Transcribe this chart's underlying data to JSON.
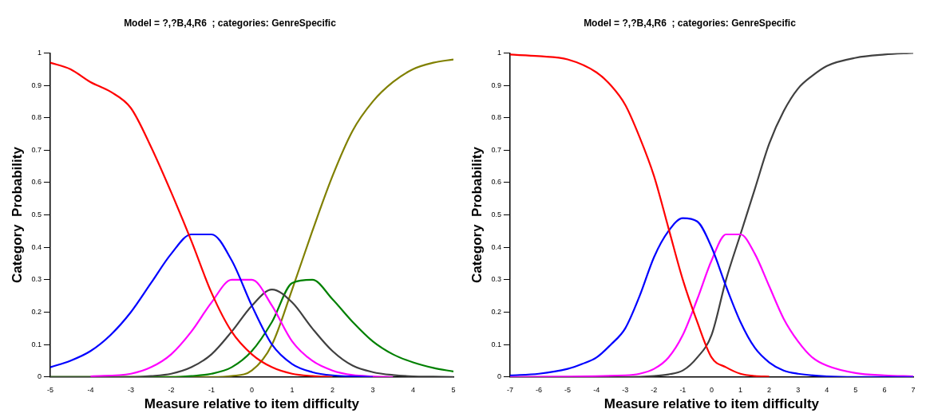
{
  "chart_data": [
    {
      "type": "line",
      "title": "Model = ?,?B,4,R6  ; categories: GenreSpecific",
      "xlabel": "Measure relative to item difficulty",
      "ylabel": "Category  Probability",
      "xlim": [
        -5,
        5
      ],
      "xticks": [
        -5,
        -4,
        -3,
        -2,
        -1,
        0,
        1,
        2,
        3,
        4,
        5
      ],
      "ylim": [
        0,
        1
      ],
      "yticks": [
        0,
        0.1,
        0.2,
        0.3,
        0.4,
        0.5,
        0.6,
        0.7,
        0.8,
        0.9,
        1
      ],
      "grid": false,
      "legend": false,
      "marker": "none",
      "line_style": "solid",
      "series": [
        {
          "color": "#ff0000",
          "x": [
            -5,
            -4.5,
            -4,
            -3.5,
            -3,
            -2.5,
            -2,
            -1.5,
            -1,
            -0.5,
            0,
            0.5,
            1,
            1.5,
            2
          ],
          "values": [
            0.97,
            0.95,
            0.91,
            0.88,
            0.83,
            0.71,
            0.57,
            0.42,
            0.26,
            0.14,
            0.07,
            0.03,
            0.01,
            0.003,
            0
          ]
        },
        {
          "color": "#0000ff",
          "x": [
            -5,
            -4.5,
            -4,
            -3.5,
            -3,
            -2.5,
            -2,
            -1.5,
            -1,
            -0.5,
            0,
            0.5,
            1,
            1.5,
            2,
            3
          ],
          "values": [
            0.03,
            0.05,
            0.08,
            0.13,
            0.2,
            0.29,
            0.38,
            0.44,
            0.44,
            0.36,
            0.22,
            0.1,
            0.04,
            0.015,
            0.005,
            0
          ]
        },
        {
          "color": "#ff00ff",
          "x": [
            -4,
            -3,
            -2.5,
            -2,
            -1.5,
            -1,
            -0.5,
            0,
            0.5,
            1,
            1.5,
            2,
            2.5,
            3,
            3.5
          ],
          "values": [
            0.002,
            0.01,
            0.03,
            0.07,
            0.14,
            0.23,
            0.3,
            0.3,
            0.22,
            0.11,
            0.05,
            0.02,
            0.006,
            0.002,
            0
          ]
        },
        {
          "color": "#404040",
          "x": [
            -5,
            -3,
            -2.5,
            -2,
            -1.5,
            -1,
            -0.5,
            0,
            0.5,
            1,
            1.5,
            2,
            2.5,
            3,
            3.5,
            4,
            4.5,
            5
          ],
          "values": [
            0,
            0,
            0.003,
            0.01,
            0.03,
            0.07,
            0.14,
            0.22,
            0.27,
            0.23,
            0.15,
            0.08,
            0.035,
            0.015,
            0.006,
            0.002,
            0.001,
            0
          ]
        },
        {
          "color": "#008000",
          "x": [
            -5,
            -2,
            -1.5,
            -1,
            -0.5,
            0,
            0.5,
            1,
            1.5,
            2,
            2.5,
            3,
            3.5,
            4,
            4.5,
            5
          ],
          "values": [
            0,
            0,
            0.003,
            0.01,
            0.03,
            0.08,
            0.17,
            0.29,
            0.3,
            0.24,
            0.17,
            0.11,
            0.07,
            0.045,
            0.028,
            0.017
          ]
        },
        {
          "color": "#808000",
          "x": [
            -5,
            -1,
            -0.5,
            0,
            0.5,
            1,
            1.5,
            2,
            2.5,
            3,
            3.5,
            4,
            4.5,
            5
          ],
          "values": [
            0,
            0,
            0.003,
            0.02,
            0.1,
            0.27,
            0.45,
            0.62,
            0.76,
            0.85,
            0.91,
            0.95,
            0.97,
            0.98
          ]
        }
      ]
    },
    {
      "type": "line",
      "title": "Model = ?,?B,4,R6  ; categories: GenreSpecific",
      "xlabel": "Measure relative to item difficulty",
      "ylabel": "Category  Probability",
      "xlim": [
        -7,
        7
      ],
      "xticks": [
        -7,
        -6,
        -5,
        -4,
        -3,
        -2,
        -1,
        0,
        1,
        2,
        3,
        4,
        5,
        6,
        7
      ],
      "ylim": [
        0,
        1
      ],
      "yticks": [
        0,
        0.1,
        0.2,
        0.3,
        0.4,
        0.5,
        0.6,
        0.7,
        0.8,
        0.9,
        1
      ],
      "grid": false,
      "legend": false,
      "marker": "none",
      "line_style": "solid",
      "series": [
        {
          "color": "#ff0000",
          "x": [
            -7,
            -6,
            -5,
            -4,
            -3.5,
            -3,
            -2.5,
            -2,
            -1.5,
            -1,
            -0.5,
            0,
            0.5,
            1,
            1.5,
            2
          ],
          "values": [
            0.995,
            0.99,
            0.98,
            0.94,
            0.9,
            0.84,
            0.74,
            0.62,
            0.46,
            0.3,
            0.17,
            0.06,
            0.03,
            0.01,
            0.003,
            0.001
          ]
        },
        {
          "color": "#0000ff",
          "x": [
            -7,
            -6,
            -5,
            -4.5,
            -4,
            -3.5,
            -3,
            -2.5,
            -2,
            -1.5,
            -1,
            -0.5,
            0,
            0.5,
            1,
            1.5,
            2,
            2.5,
            3,
            4,
            5,
            7
          ],
          "values": [
            0.005,
            0.01,
            0.025,
            0.04,
            0.06,
            0.1,
            0.15,
            0.25,
            0.37,
            0.45,
            0.49,
            0.48,
            0.4,
            0.28,
            0.17,
            0.09,
            0.045,
            0.02,
            0.01,
            0.002,
            0,
            0
          ]
        },
        {
          "color": "#ff00ff",
          "x": [
            -7,
            -3,
            -2.5,
            -2,
            -1.5,
            -1,
            -0.5,
            0,
            0.5,
            1,
            1.5,
            2,
            2.5,
            3,
            3.5,
            4,
            5,
            6,
            7
          ],
          "values": [
            0,
            0.005,
            0.01,
            0.025,
            0.06,
            0.13,
            0.24,
            0.36,
            0.44,
            0.44,
            0.38,
            0.28,
            0.18,
            0.11,
            0.06,
            0.035,
            0.012,
            0.005,
            0.002
          ]
        },
        {
          "color": "#404040",
          "x": [
            -7,
            -3,
            -2,
            -1.5,
            -1,
            -0.5,
            0,
            0.5,
            1,
            1.5,
            2,
            2.5,
            3,
            3.5,
            4,
            5,
            6,
            7
          ],
          "values": [
            0,
            0,
            0.003,
            0.008,
            0.02,
            0.06,
            0.13,
            0.3,
            0.44,
            0.58,
            0.72,
            0.82,
            0.89,
            0.93,
            0.96,
            0.985,
            0.995,
            1
          ]
        }
      ]
    }
  ]
}
